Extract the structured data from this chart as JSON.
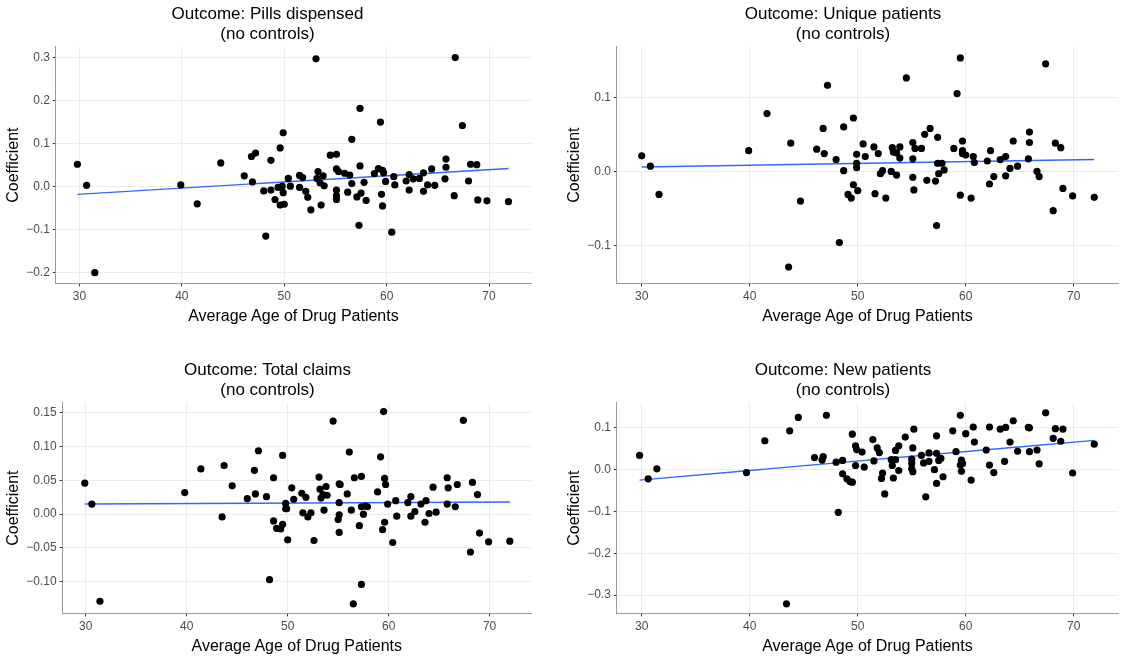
{
  "chart_data": [
    {
      "type": "scatter",
      "title": "Outcome: Pills dispensed",
      "subtitle": "(no controls)",
      "xlabel": "Average Age of Drug Patients",
      "ylabel": "Coefficient",
      "xlim": [
        27.7,
        74.1
      ],
      "xticks": [
        30,
        40,
        50,
        60,
        70
      ],
      "ylim": [
        -0.225,
        0.325
      ],
      "yticks": [
        {
          "value": -0.2,
          "label": "−0.2"
        },
        {
          "value": -0.1,
          "label": "−0.1"
        },
        {
          "value": 0,
          "label": "0.0"
        },
        0.1,
        0.2,
        0.3
      ],
      "grid": true,
      "marker": "circle",
      "series": [
        {
          "type": "scatter",
          "color": "#000000",
          "x": [
            29.8,
            30.7,
            31.5,
            39.9,
            41.5,
            43.8,
            46.1,
            46.8,
            46.9,
            47.2,
            48.0,
            48.2,
            48.7,
            48.7,
            49.1,
            49.4,
            49.6,
            49.6,
            49.8,
            49.9,
            49.9,
            50.0,
            50.4,
            50.6,
            51.5,
            51.5,
            51.8,
            52.1,
            52.3,
            52.6,
            53.1,
            53.2,
            53.3,
            53.5,
            53.6,
            53.8,
            53.9,
            54.5,
            55.1,
            55.1,
            55.1,
            55.1,
            55.1,
            55.3,
            55.9,
            56.2,
            56.4,
            56.6,
            56.6,
            57.1,
            57.4,
            57.4,
            57.3,
            57.5,
            57.8,
            58.0,
            58.8,
            59.2,
            59.4,
            59.5,
            59.6,
            59.6,
            59.7,
            59.9,
            60.7,
            60.5,
            60.8,
            61.9,
            62.2,
            62.2,
            62.6,
            63.2,
            63.6,
            63.6,
            64.0,
            64.4,
            64.7,
            65.7,
            65.8,
            65.8,
            66.6,
            66.7,
            67.4,
            68.0,
            68.2,
            68.8,
            68.9,
            69.8,
            71.9
          ],
          "values": [
            0.052,
            0.003,
            -0.2,
            0.004,
            -0.04,
            0.055,
            0.025,
            0.07,
            0.011,
            0.078,
            -0.01,
            -0.115,
            0.061,
            -0.008,
            -0.03,
            -0.002,
            0.09,
            -0.043,
            0.001,
            -0.014,
            0.125,
            -0.041,
            0.019,
            0.001,
            0.026,
            -0.002,
            0.021,
            -0.011,
            -0.025,
            -0.054,
            0.297,
            0.019,
            0.035,
            0.009,
            -0.043,
            0.025,
            0.002,
            0.073,
            0.075,
            0.041,
            -0.008,
            -0.021,
            -0.03,
            0.035,
            0.031,
            -0.013,
            0.027,
            0.11,
            0.007,
            -0.024,
            0.182,
            0.048,
            -0.09,
            -0.015,
            0.01,
            -0.032,
            0.03,
            0.042,
            0.15,
            -0.018,
            0.038,
            -0.045,
            0.032,
            0.012,
            0.023,
            -0.106,
            0.004,
            0.013,
            0.028,
            -0.008,
            0.018,
            0.019,
            0.032,
            -0.011,
            0.004,
            0.041,
            0.003,
            0.018,
            0.064,
            0.045,
            -0.021,
            0.3,
            0.142,
            0.013,
            0.052,
            0.051,
            -0.031,
            -0.033,
            -0.035
          ]
        },
        {
          "type": "line",
          "color": "#3366ff",
          "marker": "none",
          "x": [
            29.8,
            71.9
          ],
          "values": [
            -0.018,
            0.042
          ]
        }
      ]
    },
    {
      "type": "scatter",
      "title": "Outcome: Unique patients",
      "subtitle": "(no controls)",
      "xlabel": "Average Age of Drug Patients",
      "ylabel": "Coefficient",
      "xlim": [
        27.7,
        74.1
      ],
      "xticks": [
        30,
        40,
        50,
        60,
        70
      ],
      "ylim": [
        -0.151,
        0.168
      ],
      "yticks": [
        {
          "value": -0.1,
          "label": "−0.1"
        },
        {
          "value": 0,
          "label": "0.0"
        },
        0.1
      ],
      "grid": true,
      "marker": "circle",
      "series": [
        {
          "type": "scatter",
          "color": "#000000",
          "x": [
            30.0,
            30.8,
            31.6,
            39.9,
            41.6,
            43.8,
            43.6,
            44.7,
            46.2,
            46.8,
            46.9,
            47.2,
            48.0,
            48.3,
            48.7,
            48.7,
            49.1,
            49.4,
            49.6,
            49.6,
            49.9,
            49.9,
            49.9,
            50.0,
            50.5,
            50.7,
            51.5,
            51.6,
            51.9,
            52.1,
            52.3,
            52.6,
            53.1,
            53.2,
            53.3,
            53.6,
            53.6,
            53.9,
            53.9,
            54.5,
            55.1,
            55.1,
            55.1,
            55.2,
            55.3,
            55.9,
            56.2,
            56.4,
            56.7,
            57.2,
            57.3,
            57.4,
            57.4,
            57.5,
            57.8,
            58.0,
            58.9,
            59.2,
            59.5,
            59.5,
            59.7,
            59.7,
            59.7,
            60.0,
            60.5,
            60.7,
            60.8,
            62.0,
            62.2,
            62.3,
            62.6,
            63.2,
            63.7,
            63.7,
            64.1,
            64.4,
            64.8,
            65.8,
            65.9,
            65.9,
            66.6,
            66.8,
            67.4,
            68.1,
            68.3,
            68.8,
            69.0,
            69.9,
            71.9
          ],
          "values": [
            0.021,
            0.007,
            -0.031,
            0.028,
            0.078,
            0.038,
            -0.129,
            -0.04,
            0.03,
            0.058,
            0.024,
            0.116,
            0.016,
            -0.096,
            0.06,
            0.001,
            -0.031,
            -0.036,
            0.072,
            -0.018,
            0.011,
            0.005,
            0.023,
            -0.026,
            0.037,
            0.02,
            0.033,
            -0.03,
            0.024,
            -0.003,
            0.001,
            -0.036,
            0.0,
            0.032,
            0.026,
            0.025,
            -0.005,
            0.033,
            0.018,
            0.126,
            0.039,
            0.017,
            -0.008,
            -0.025,
            0.031,
            0.031,
            0.05,
            -0.012,
            0.058,
            -0.013,
            -0.073,
            0.046,
            0.011,
            -0.003,
            0.011,
            0.002,
            0.031,
            0.105,
            -0.032,
            0.153,
            0.041,
            0.024,
            0.028,
            0.022,
            -0.036,
            0.02,
            0.012,
            0.014,
            -0.017,
            0.028,
            -0.007,
            0.016,
            0.02,
            -0.006,
            0.004,
            0.041,
            0.007,
            0.017,
            0.039,
            0.053,
            0.0,
            -0.007,
            0.145,
            -0.053,
            0.038,
            0.032,
            -0.023,
            -0.033,
            -0.035
          ]
        },
        {
          "type": "line",
          "color": "#3366ff",
          "marker": "none",
          "x": [
            30.0,
            71.9
          ],
          "values": [
            0.006,
            0.016
          ]
        }
      ]
    },
    {
      "type": "scatter",
      "title": "Outcome: Total claims",
      "subtitle": "(no controls)",
      "xlabel": "Average Age of Drug Patients",
      "ylabel": "Coefficient",
      "xlim": [
        27.7,
        74.1
      ],
      "xticks": [
        30,
        40,
        50,
        60,
        70
      ],
      "ylim": [
        -0.147,
        0.165
      ],
      "yticks": [
        {
          "value": -0.1,
          "label": "−0.10"
        },
        {
          "value": -0.05,
          "label": "−0.05"
        },
        {
          "value": 0,
          "label": "0.00"
        },
        {
          "value": 0.05,
          "label": "0.05"
        },
        {
          "value": 0.1,
          "label": "0.10"
        },
        {
          "value": 0.15,
          "label": "0.15"
        }
      ],
      "grid": true,
      "marker": "circle",
      "series": [
        {
          "type": "scatter",
          "color": "#000000",
          "x": [
            29.9,
            30.6,
            31.4,
            39.8,
            41.4,
            43.5,
            43.7,
            44.5,
            46.0,
            46.7,
            46.8,
            47.1,
            47.9,
            48.2,
            48.6,
            48.6,
            48.9,
            49.3,
            49.5,
            49.5,
            49.8,
            49.8,
            49.9,
            50.0,
            50.4,
            50.6,
            51.4,
            51.5,
            51.8,
            52.0,
            52.3,
            52.6,
            53.1,
            53.2,
            53.3,
            53.5,
            53.6,
            53.8,
            53.9,
            54.5,
            55.1,
            55.2,
            55.1,
            55.1,
            55.0,
            55.1,
            55.9,
            56.1,
            56.3,
            56.6,
            56.5,
            57.1,
            57.3,
            57.3,
            57.3,
            57.5,
            57.7,
            57.9,
            58.9,
            59.2,
            59.4,
            59.5,
            59.6,
            59.6,
            59.7,
            59.9,
            60.4,
            60.7,
            60.8,
            61.9,
            62.2,
            62.2,
            62.6,
            63.2,
            63.6,
            63.7,
            64.0,
            64.4,
            64.7,
            65.8,
            65.8,
            65.9,
            66.6,
            66.8,
            67.4,
            68.1,
            68.3,
            68.8,
            69.0,
            69.9,
            72.0
          ],
          "values": [
            0.046,
            0.015,
            -0.129,
            0.032,
            0.067,
            -0.004,
            0.072,
            0.042,
            0.023,
            0.065,
            0.03,
            0.094,
            0.026,
            -0.097,
            0.054,
            -0.01,
            -0.021,
            -0.022,
            0.087,
            -0.015,
            0.016,
            0.008,
            0.008,
            -0.038,
            0.039,
            0.022,
            0.031,
            0.002,
            0.025,
            -0.004,
            0.002,
            -0.039,
            0.055,
            0.037,
            0.024,
            0.029,
            0.006,
            0.041,
            0.028,
            0.138,
            0.045,
            0.044,
            0.017,
            -0.001,
            -0.008,
            -0.027,
            0.03,
            0.092,
            0.006,
            0.054,
            -0.133,
            -0.017,
            0.056,
            0.011,
            -0.104,
            0.0,
            0.012,
            0.011,
            0.033,
            0.085,
            -0.023,
            0.152,
            0.053,
            -0.012,
            0.044,
            0.015,
            -0.042,
            0.02,
            -0.003,
            0.017,
            0.026,
            -0.003,
            0.004,
            0.015,
            -0.012,
            0.02,
            0.001,
            0.04,
            0.003,
            0.015,
            0.054,
            0.039,
            0.011,
            0.044,
            0.139,
            -0.056,
            0.047,
            0.029,
            -0.028,
            -0.041,
            -0.04
          ]
        },
        {
          "type": "line",
          "color": "#3366ff",
          "marker": "none",
          "x": [
            29.9,
            72.0
          ],
          "values": [
            0.015,
            0.018
          ]
        }
      ]
    },
    {
      "type": "scatter",
      "title": "Outcome: New patients",
      "subtitle": "(no controls)",
      "xlabel": "Average Age of Drug Patients",
      "ylabel": "Coefficient",
      "xlim": [
        27.7,
        74.1
      ],
      "xticks": [
        30,
        40,
        50,
        60,
        70
      ],
      "ylim": [
        -0.344,
        0.16
      ],
      "yticks": [
        {
          "value": -0.3,
          "label": "−0.3"
        },
        {
          "value": -0.2,
          "label": "−0.2"
        },
        {
          "value": -0.1,
          "label": "−0.1"
        },
        {
          "value": 0,
          "label": "0.0"
        },
        0.1
      ],
      "grid": true,
      "marker": "circle",
      "series": [
        {
          "type": "scatter",
          "color": "#000000",
          "x": [
            29.8,
            30.6,
            31.4,
            39.7,
            41.4,
            43.7,
            43.4,
            44.5,
            46.0,
            46.8,
            46.7,
            47.1,
            48.0,
            48.2,
            48.6,
            48.6,
            49.0,
            49.3,
            49.5,
            49.5,
            49.8,
            49.8,
            49.9,
            50.4,
            50.6,
            51.4,
            51.5,
            51.8,
            52.0,
            52.3,
            52.2,
            52.5,
            53.1,
            53.2,
            53.3,
            53.5,
            53.5,
            53.8,
            53.8,
            54.4,
            55.0,
            55.0,
            55.0,
            55.1,
            55.1,
            55.2,
            55.9,
            56.1,
            56.3,
            56.6,
            56.6,
            57.1,
            57.3,
            57.3,
            57.3,
            57.5,
            57.7,
            57.9,
            58.8,
            59.1,
            59.5,
            59.5,
            59.6,
            59.7,
            59.6,
            60.0,
            60.5,
            60.7,
            60.8,
            61.9,
            62.2,
            62.2,
            62.6,
            63.2,
            63.7,
            63.6,
            64.1,
            64.4,
            64.8,
            65.8,
            65.9,
            65.9,
            66.6,
            66.8,
            67.4,
            68.1,
            68.3,
            68.8,
            69.0,
            69.9,
            71.9
          ],
          "values": [
            0.034,
            -0.022,
            0.002,
            -0.007,
            0.069,
            0.093,
            -0.321,
            0.125,
            0.029,
            0.031,
            0.023,
            0.13,
            0.018,
            -0.102,
            0.022,
            -0.01,
            -0.022,
            -0.029,
            -0.03,
            0.085,
            0.01,
            0.057,
            0.048,
            0.042,
            0.006,
            0.072,
            0.021,
            0.052,
            0.041,
            -0.008,
            -0.021,
            -0.058,
            0.024,
            0.01,
            -0.02,
            0.046,
            0.024,
            0.057,
            -0.002,
            0.078,
            0.025,
            0.015,
            0.002,
            -0.005,
            0.052,
            0.097,
            0.034,
            0.016,
            -0.065,
            0.04,
            0.02,
            0.0,
            0.081,
            0.039,
            -0.033,
            0.022,
            0.027,
            -0.017,
            0.093,
            0.043,
            0.13,
            0.011,
            0.023,
            0.015,
            -0.004,
            0.086,
            -0.025,
            0.102,
            0.066,
            0.047,
            0.102,
            0.011,
            -0.007,
            0.097,
            0.101,
            0.02,
            0.066,
            0.117,
            0.044,
            0.101,
            0.1,
            0.043,
            0.047,
            0.014,
            0.136,
            0.075,
            0.098,
            0.068,
            0.097,
            -0.008,
            0.061
          ]
        },
        {
          "type": "line",
          "color": "#3366ff",
          "marker": "none",
          "x": [
            29.8,
            71.9
          ],
          "values": [
            -0.025,
            0.07
          ]
        }
      ]
    }
  ]
}
